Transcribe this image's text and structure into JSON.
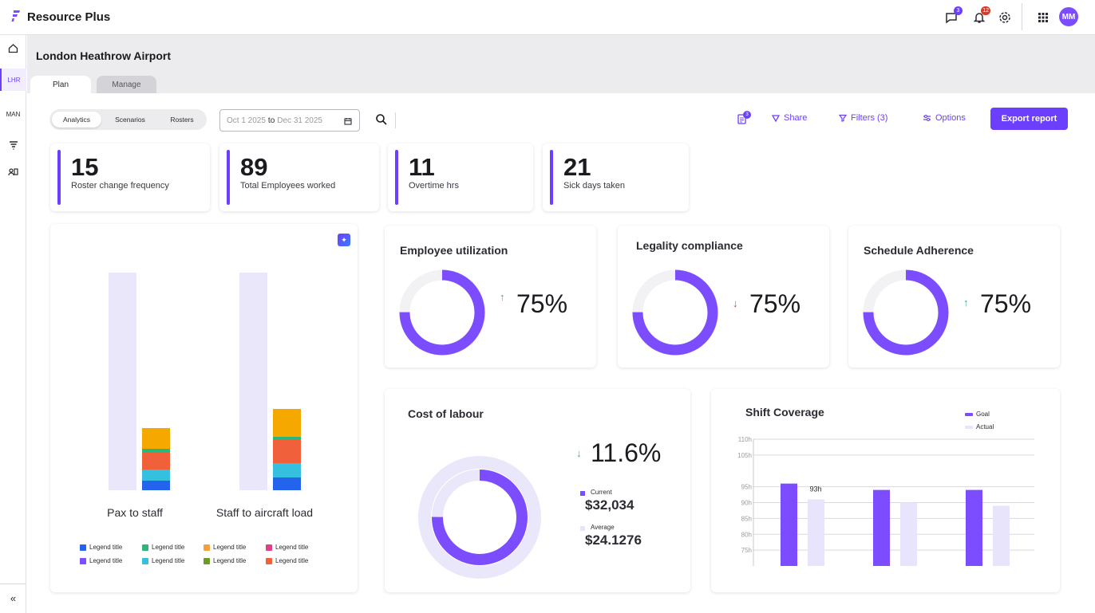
{
  "app": {
    "name": "Resource Plus",
    "avatar_initials": "MM",
    "brand_color": "#6c3fff"
  },
  "topbar": {
    "messages_badge": "3",
    "notifications_badge": "12"
  },
  "sidebar": {
    "items": [
      {
        "label": "",
        "icon": "home-icon"
      },
      {
        "label": "LHR"
      },
      {
        "label": "MAN"
      },
      {
        "label": "",
        "icon": "filter-funnel-icon"
      },
      {
        "label": "",
        "icon": "people-card-icon"
      }
    ]
  },
  "page": {
    "title": "London Heathrow Airport",
    "tabs": [
      {
        "label": "Plan"
      },
      {
        "label": "Manage"
      }
    ]
  },
  "toolbar": {
    "segments": [
      "Analytics",
      "Scenarios",
      "Rosters"
    ],
    "date_from": "Oct 1 2025",
    "date_to_word": "to",
    "date_to": "Dec 31 2025",
    "report_badge": "3",
    "share": "Share",
    "filters": "Filters (3)",
    "options": "Options",
    "export": "Export report"
  },
  "kpis": [
    {
      "value": "15",
      "label": "Roster change frequency"
    },
    {
      "value": "89",
      "label": "Total Employees worked"
    },
    {
      "value": "11",
      "label": "Overtime hrs"
    },
    {
      "value": "21",
      "label": "Sick days taken"
    }
  ],
  "gauges": [
    {
      "title": "Employee utilization",
      "value": "75%",
      "trend": "up",
      "fraction": 0.75
    },
    {
      "title": "Legality compliance",
      "value": "75%",
      "trend": "down",
      "fraction": 0.75
    },
    {
      "title": "Schedule Adherence",
      "value": "75%",
      "trend": "up",
      "fraction": 0.75
    }
  ],
  "cost": {
    "title": "Cost of  labour",
    "change": "11.6%",
    "current_label": "Current",
    "current_value": "$32,034",
    "average_label": "Average",
    "average_value": "$24.1276"
  },
  "stacked": {
    "categories": [
      "Pax to staff",
      "Staff to aircraft load"
    ],
    "legend": [
      {
        "label": "Legend title",
        "color": "#2463eb"
      },
      {
        "label": "Legend title",
        "color": "#2fb57a"
      },
      {
        "label": "Legend title",
        "color": "#f5a13b"
      },
      {
        "label": "Legend title",
        "color": "#e0408a"
      },
      {
        "label": "Legend title",
        "color": "#7b4dff"
      },
      {
        "label": "Legend title",
        "color": "#35c0e0"
      },
      {
        "label": "Legend title",
        "color": "#6e9a2a"
      },
      {
        "label": "Legend title",
        "color": "#f0603a"
      }
    ]
  },
  "chart_data": {
    "type": "bar",
    "title": "Shift Coverage",
    "ylabel": "",
    "xlabel": "",
    "ylim": [
      70,
      110
    ],
    "yticks": [
      "110h",
      "105h",
      "95h",
      "90h",
      "85h",
      "80h",
      "75h"
    ],
    "categories": [
      "",
      "",
      ""
    ],
    "series": [
      {
        "name": "Goal",
        "color": "#7b4dff",
        "values": [
          96,
          94,
          94
        ]
      },
      {
        "name": "Actual",
        "color": "#e8e4fb",
        "values": [
          91,
          90,
          89
        ]
      }
    ],
    "data_labels": [
      "93h"
    ],
    "legend_position": "top-right",
    "grid": true
  }
}
